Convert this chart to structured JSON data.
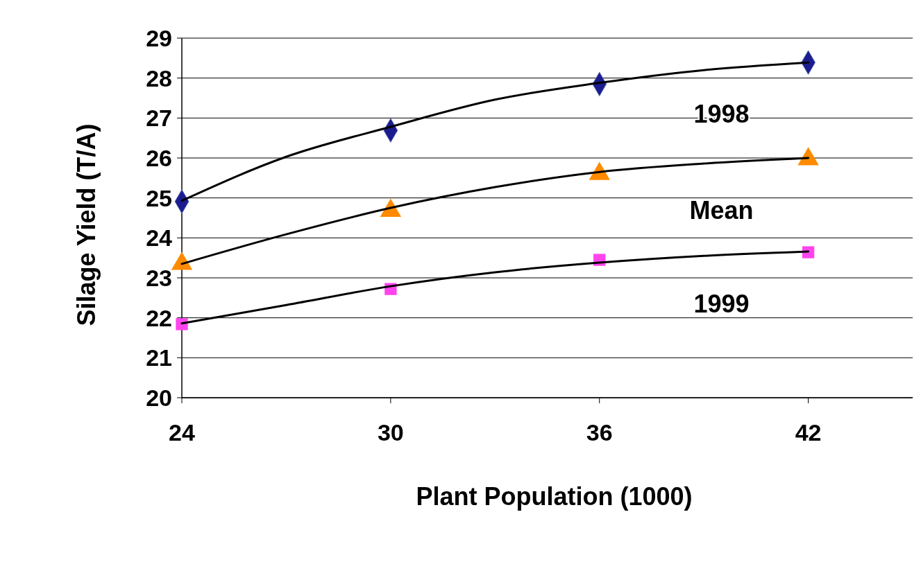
{
  "chart_data": {
    "type": "scatter",
    "xlabel": "Plant Population (1000)",
    "ylabel": "Silage Yield (T/A)",
    "xlim": [
      24,
      45
    ],
    "xticks": [
      24,
      30,
      36,
      42
    ],
    "ylim": [
      20,
      29
    ],
    "yticks": [
      20,
      21,
      22,
      23,
      24,
      25,
      26,
      27,
      28,
      29
    ],
    "grid": "y",
    "annotations": [
      "1998",
      "Mean",
      "1999"
    ],
    "series": [
      {
        "marker": "diamond",
        "color": "#1c1c8f",
        "x": [
          24,
          30,
          36,
          42
        ],
        "values": [
          24.91,
          26.69,
          27.85,
          28.39
        ]
      },
      {
        "marker": "triangle",
        "color": "#ff8a00",
        "x": [
          24,
          30,
          36,
          42
        ],
        "values": [
          23.35,
          24.68,
          25.6,
          25.97
        ]
      },
      {
        "marker": "square",
        "color": "#ff44ee",
        "x": [
          24,
          30,
          36,
          42
        ],
        "values": [
          21.84,
          22.72,
          23.45,
          23.64
        ]
      },
      {
        "type": "line",
        "color": "#000000",
        "x": [
          24,
          27,
          30,
          33,
          36,
          39,
          42
        ],
        "values": [
          24.93,
          26.03,
          26.78,
          27.46,
          27.88,
          28.2,
          28.39
        ]
      },
      {
        "type": "line",
        "color": "#000000",
        "x": [
          24,
          27,
          30,
          33,
          36,
          39,
          42
        ],
        "values": [
          23.35,
          24.09,
          24.75,
          25.27,
          25.65,
          25.86,
          26.0
        ]
      },
      {
        "type": "line",
        "color": "#000000",
        "x": [
          24,
          27,
          30,
          33,
          36,
          39,
          42
        ],
        "values": [
          21.86,
          22.32,
          22.79,
          23.14,
          23.38,
          23.55,
          23.66
        ]
      }
    ]
  }
}
